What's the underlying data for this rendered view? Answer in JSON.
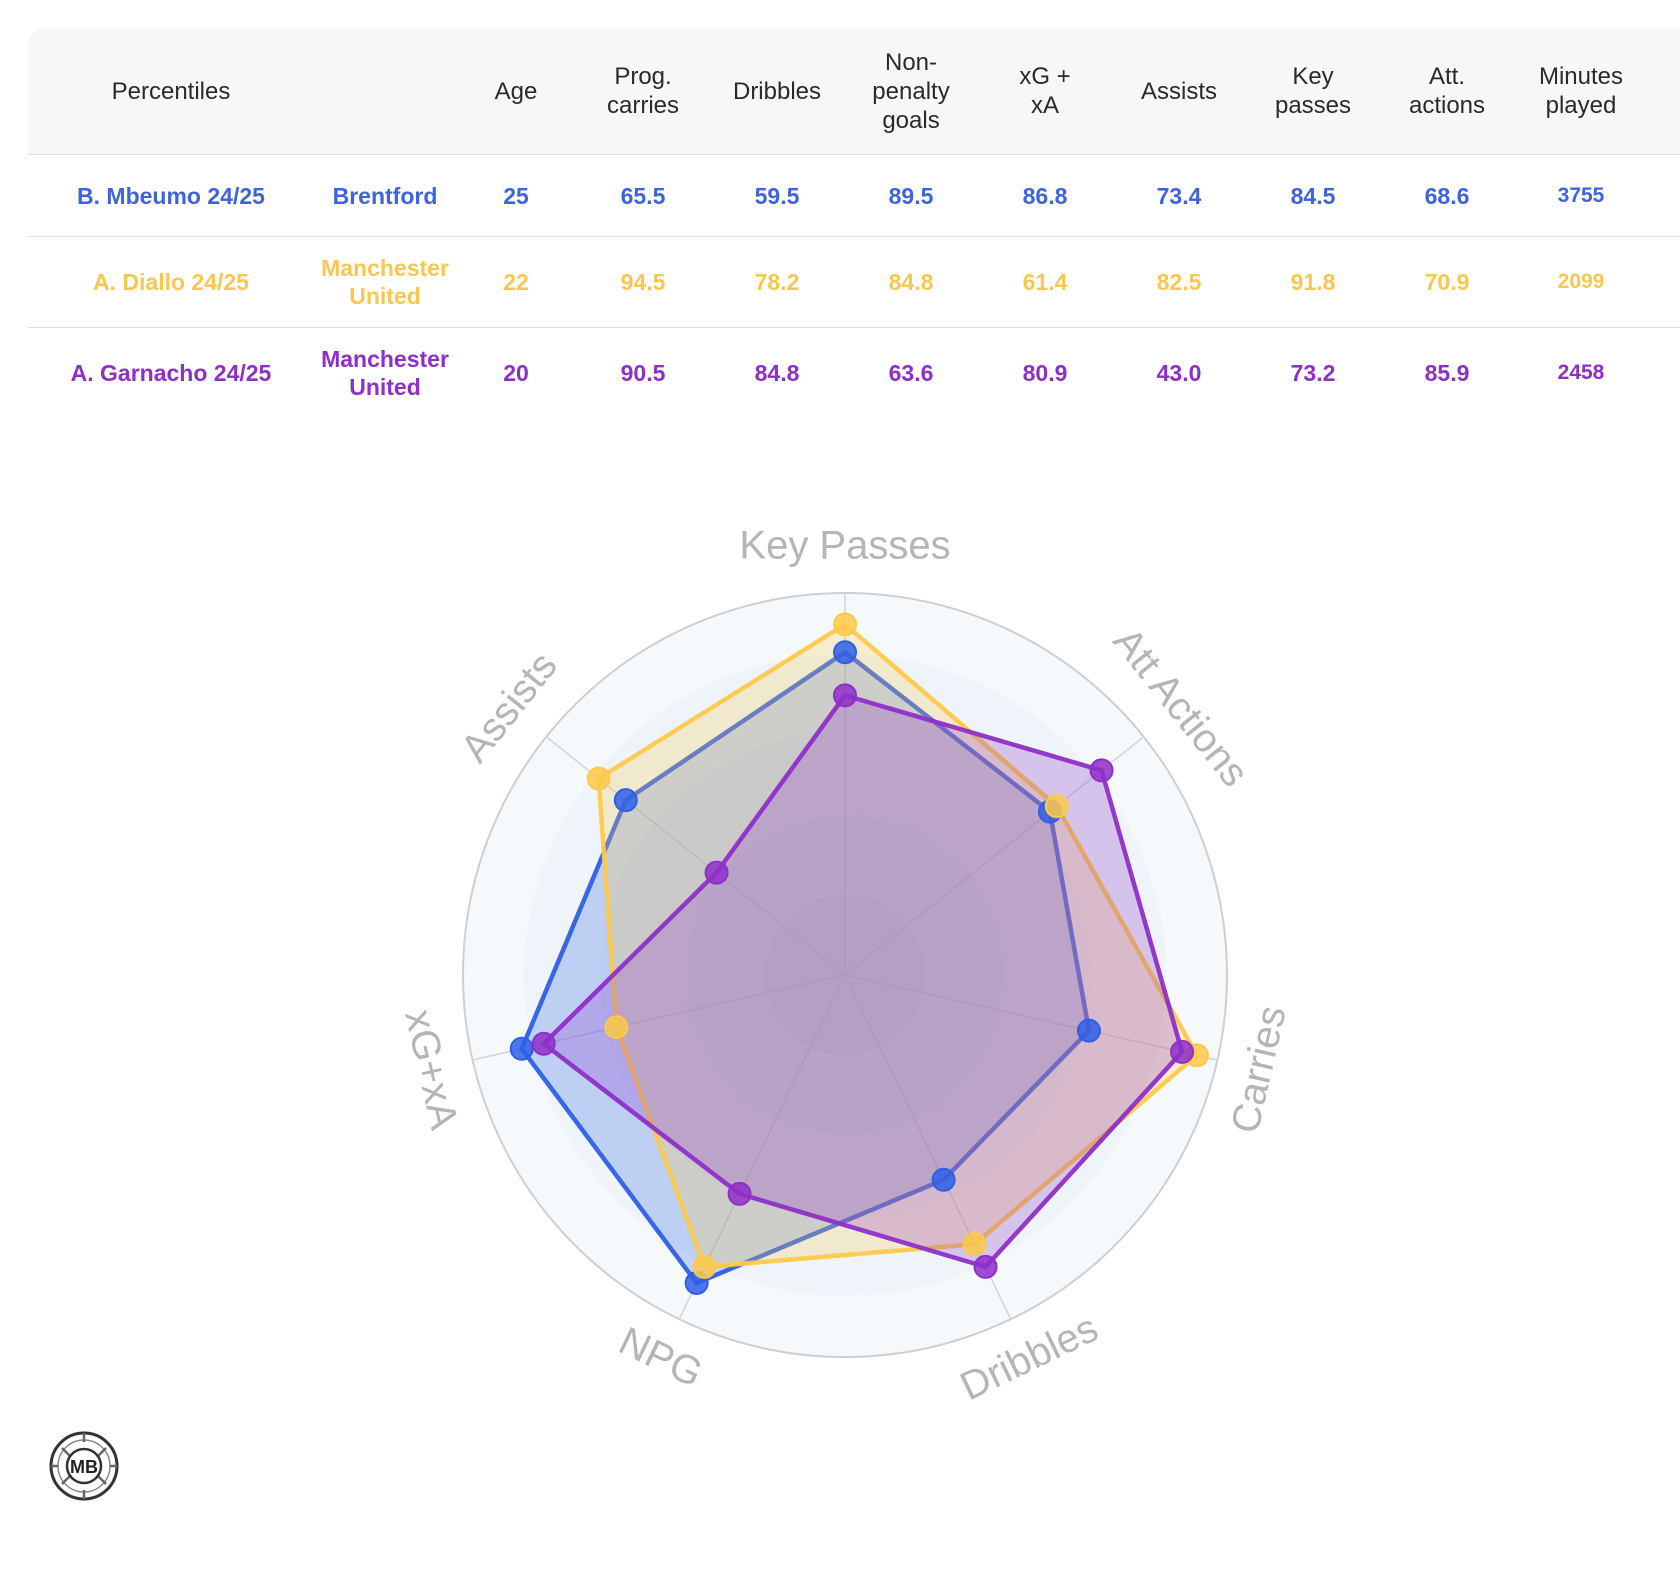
{
  "table": {
    "headers": [
      "Percentiles",
      "",
      "Age",
      "Prog.\ncarries",
      "Dribbles",
      "Non-\npenalty\ngoals",
      "xG +\nxA",
      "Assists",
      "Key\npasses",
      "Att.\nactions",
      "Minutes\nplayed",
      ""
    ],
    "close_label": "x",
    "rows": [
      {
        "player": "B. Mbeumo 24/25",
        "team": "Brentford",
        "age": "25",
        "prog_carries": "65.5",
        "dribbles": "59.5",
        "npg": "89.5",
        "xg_xa": "86.8",
        "assists": "73.4",
        "key_passes": "84.5",
        "att_actions": "68.6",
        "minutes": "3755",
        "color": "#3e63dd"
      },
      {
        "player": "A. Diallo 24/25",
        "team": "Manchester\nUnited",
        "age": "22",
        "prog_carries": "94.5",
        "dribbles": "78.2",
        "npg": "84.8",
        "xg_xa": "61.4",
        "assists": "82.5",
        "key_passes": "91.8",
        "att_actions": "70.9",
        "minutes": "2099",
        "color": "#f9c74f"
      },
      {
        "player": "A. Garnacho 24/25",
        "team": "Manchester\nUnited",
        "age": "20",
        "prog_carries": "90.5",
        "dribbles": "84.8",
        "npg": "63.6",
        "xg_xa": "80.9",
        "assists": "43.0",
        "key_passes": "73.2",
        "att_actions": "85.9",
        "minutes": "2458",
        "color": "#8e2fc8"
      }
    ]
  },
  "chart_data": {
    "type": "radar",
    "axes": [
      "Key Passes",
      "Att Actions",
      "Carries",
      "Dribbles",
      "NPG",
      "xG+xA",
      "Assists"
    ],
    "range": [
      0,
      100
    ],
    "series": [
      {
        "name": "B. Mbeumo 24/25",
        "color": "#2f5fe6",
        "values": [
          84.5,
          68.6,
          65.5,
          59.5,
          89.5,
          86.8,
          73.4
        ]
      },
      {
        "name": "A. Diallo 24/25",
        "color": "#fcc94a",
        "values": [
          91.8,
          70.9,
          94.5,
          78.2,
          84.8,
          61.4,
          82.5
        ]
      },
      {
        "name": "A. Garnacho 24/25",
        "color": "#8e2fc8",
        "values": [
          73.2,
          85.9,
          90.5,
          84.8,
          63.6,
          80.9,
          43.0
        ]
      }
    ]
  },
  "logo": {
    "text": "MB"
  }
}
